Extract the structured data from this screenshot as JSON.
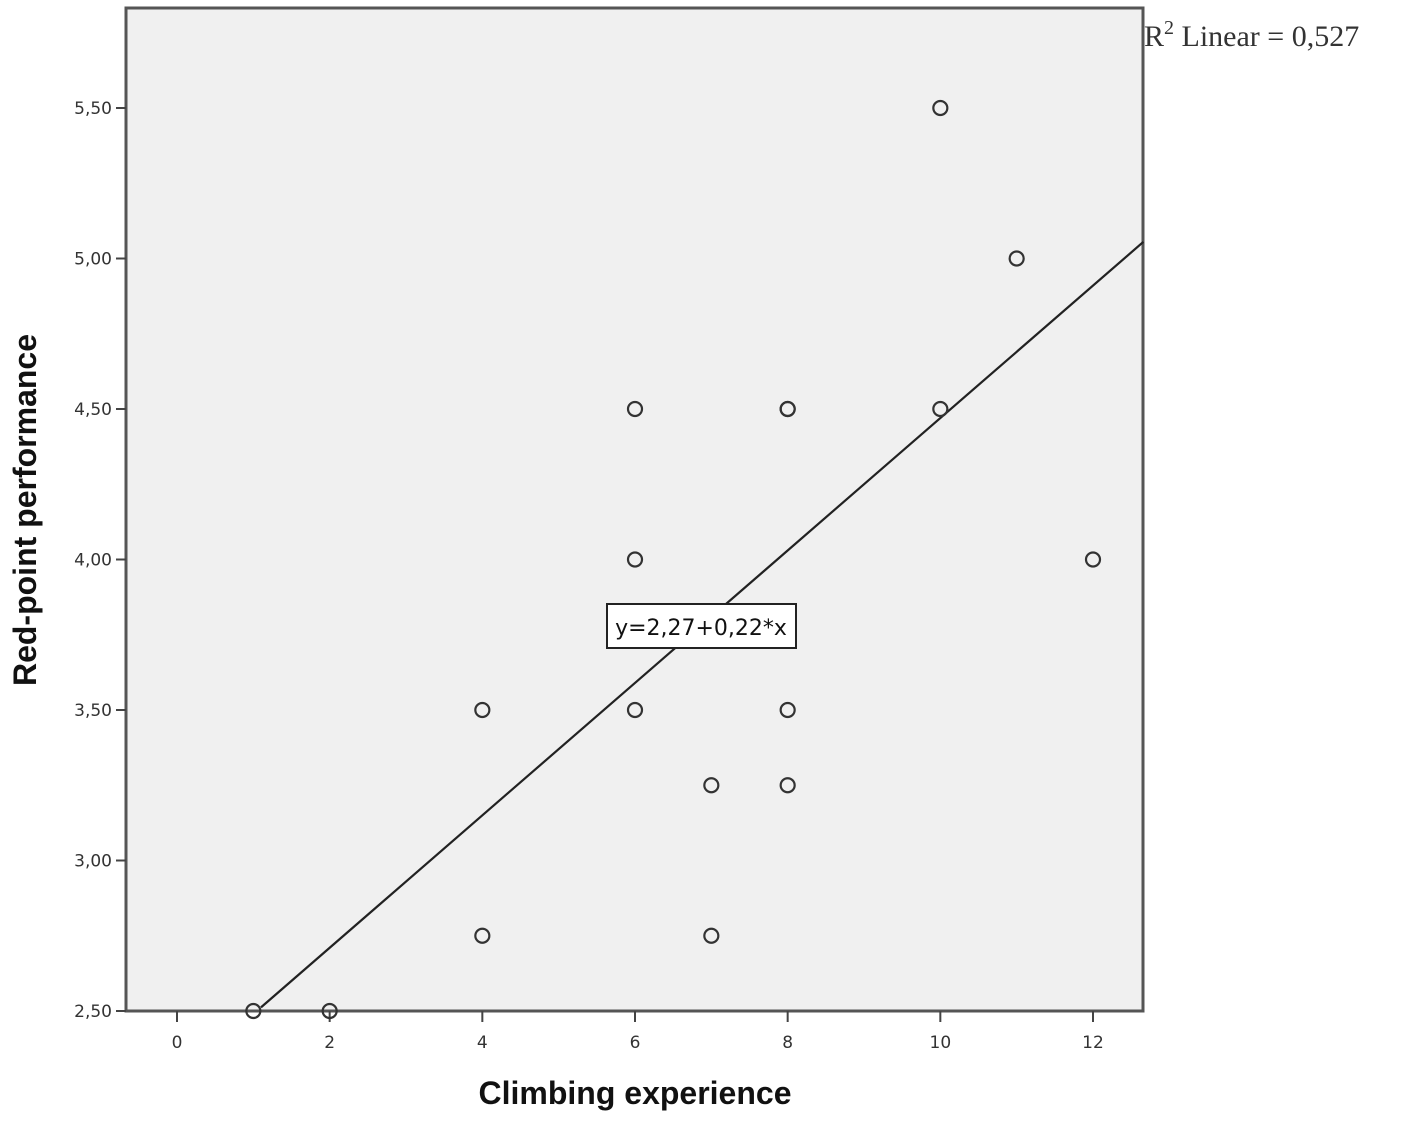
{
  "chart_data": {
    "type": "scatter",
    "title": "",
    "xlabel": "Climbing experience",
    "ylabel": "Red-point performance",
    "xlim": [
      -0.67,
      12.66
    ],
    "ylim": [
      2.5,
      5.83
    ],
    "x_ticks": [
      0,
      2,
      4,
      6,
      8,
      10,
      12
    ],
    "x_tick_labels": [
      "0",
      "2",
      "4",
      "6",
      "8",
      "10",
      "12"
    ],
    "y_ticks": [
      2.5,
      3.0,
      3.5,
      4.0,
      4.5,
      5.0,
      5.5
    ],
    "y_tick_labels": [
      "2,50",
      "3,00",
      "3,50",
      "4,00",
      "4,50",
      "5,00",
      "5,50"
    ],
    "grid": false,
    "points": [
      {
        "x": 1,
        "y": 2.5
      },
      {
        "x": 2,
        "y": 2.5
      },
      {
        "x": 4,
        "y": 2.75
      },
      {
        "x": 4,
        "y": 3.5
      },
      {
        "x": 6,
        "y": 3.5
      },
      {
        "x": 6,
        "y": 4.0
      },
      {
        "x": 6,
        "y": 4.5
      },
      {
        "x": 7,
        "y": 2.75
      },
      {
        "x": 7,
        "y": 3.25
      },
      {
        "x": 8,
        "y": 3.25
      },
      {
        "x": 8,
        "y": 3.5
      },
      {
        "x": 8,
        "y": 4.5
      },
      {
        "x": 8,
        "y": 4.5
      },
      {
        "x": 10,
        "y": 4.5
      },
      {
        "x": 10,
        "y": 5.5
      },
      {
        "x": 11,
        "y": 5.0
      },
      {
        "x": 12,
        "y": 4.0
      }
    ],
    "fit_line": {
      "type": "linear",
      "intercept": 2.27,
      "slope": 0.22,
      "x_range": [
        1.1,
        12.66
      ]
    },
    "annotations": {
      "equation": "y=2,27+0,22*x",
      "r2_prefix": "R",
      "r2_sup": "2",
      "r2_text": " Linear = 0,527"
    },
    "colors": {
      "plot_background": "#f0f0f0",
      "frame": "#555555",
      "marker": "#333333",
      "line": "#222222"
    }
  }
}
